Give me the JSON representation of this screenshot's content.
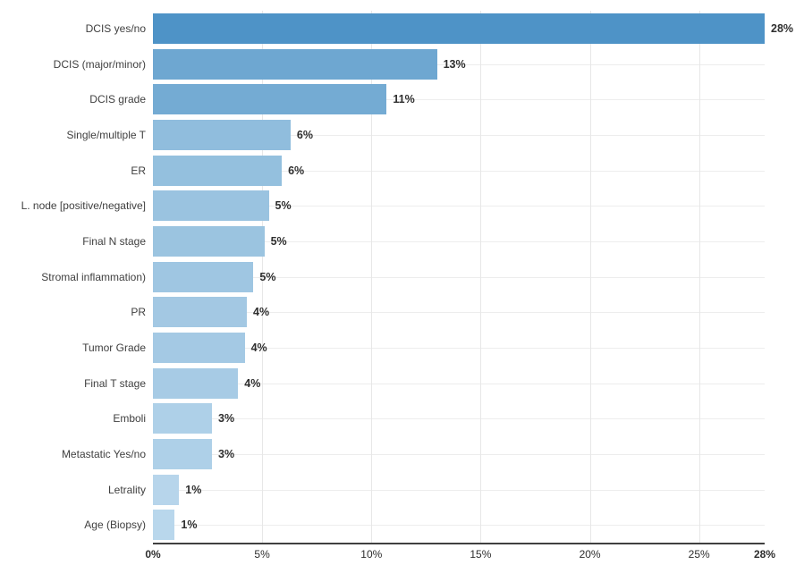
{
  "chart_data": {
    "type": "bar",
    "orientation": "horizontal",
    "title": "",
    "xlabel": "",
    "ylabel": "",
    "xlim": [
      0,
      28
    ],
    "grid": true,
    "legend": null,
    "categories": [
      "DCIS yes/no",
      "DCIS (major/minor)",
      "DCIS grade",
      "Single/multiple T",
      "ER",
      "L. node [positive/negative]",
      "Final N stage",
      "Stromal inflammation)",
      "PR",
      "Tumor Grade",
      "Final T stage",
      "Emboli",
      "Metastatic Yes/no",
      "Letrality",
      "Age (Biopsy)"
    ],
    "values": [
      28,
      13,
      10.7,
      6.3,
      5.9,
      5.3,
      5.1,
      4.6,
      4.3,
      4.2,
      3.9,
      2.7,
      2.7,
      1.2,
      1.0
    ],
    "value_labels": [
      "28%",
      "13%",
      "11%",
      "6%",
      "6%",
      "5%",
      "5%",
      "5%",
      "4%",
      "4%",
      "4%",
      "3%",
      "3%",
      "1%",
      "1%"
    ],
    "bar_colors": [
      "#4e93c7",
      "#6ea7d1",
      "#74abd3",
      "#90bddd",
      "#94c0de",
      "#9ac3e0",
      "#9bc4e0",
      "#9fc6e2",
      "#a3c8e3",
      "#a4c9e4",
      "#a7cbe5",
      "#aed0e8",
      "#aed0e8",
      "#b7d5eb",
      "#b9d7ec"
    ],
    "x_ticks": [
      {
        "value": 0,
        "label": "0%",
        "bold": true
      },
      {
        "value": 5,
        "label": "5%",
        "bold": false
      },
      {
        "value": 10,
        "label": "10%",
        "bold": false
      },
      {
        "value": 15,
        "label": "15%",
        "bold": false
      },
      {
        "value": 20,
        "label": "20%",
        "bold": false
      },
      {
        "value": 25,
        "label": "25%",
        "bold": false
      },
      {
        "value": 28,
        "label": "28%",
        "bold": true
      }
    ]
  },
  "style": {
    "background": "#ffffff",
    "axis_line_color": "#404040",
    "h_gridline_color": "#ededed",
    "v_gridline_color": "#e7e7e7",
    "category_label_color": "#3f3f3f",
    "value_label_color": "#2e2e2e"
  }
}
